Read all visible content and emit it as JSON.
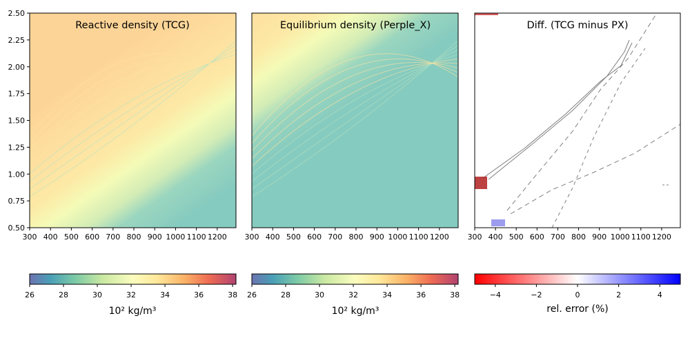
{
  "chart_data": [
    {
      "type": "heatmap",
      "title": "Reactive density (TCG)",
      "x_ticks": [
        "300",
        "400",
        "500",
        "600",
        "700",
        "800",
        "900",
        "1000",
        "1100",
        "1200"
      ],
      "y_ticks": [
        "0.50",
        "0.75",
        "1.00",
        "1.25",
        "1.50",
        "1.75",
        "2.00",
        "2.25",
        "2.50"
      ],
      "xlim": [
        300,
        1290
      ],
      "ylim": [
        0.5,
        2.5
      ],
      "colorbar": {
        "label": "10² kg/m³",
        "ticks": [
          "26",
          "28",
          "30",
          "32",
          "34",
          "36",
          "38"
        ],
        "range": [
          26,
          38.2
        ],
        "colormap": "Spectral_r"
      },
      "colors": {
        "low": "#86cbbf",
        "mid": "#f4fbb7",
        "high": "#fdd497"
      }
    },
    {
      "type": "heatmap",
      "title": "Equilibrium density (Perple_X)",
      "x_ticks": [
        "300",
        "400",
        "500",
        "600",
        "700",
        "800",
        "900",
        "1000",
        "1100",
        "1200"
      ],
      "y_ticks": [],
      "xlim": [
        300,
        1290
      ],
      "ylim": [
        0.5,
        2.5
      ],
      "colorbar": {
        "label": "10² kg/m³",
        "ticks": [
          "26",
          "28",
          "30",
          "32",
          "34",
          "36",
          "38"
        ],
        "range": [
          26,
          38.2
        ],
        "colormap": "Spectral_r"
      },
      "colors": {
        "low": "#86cbbf",
        "mid": "#f4fbb7",
        "high": "#fdd497"
      }
    },
    {
      "type": "heatmap",
      "title": "Diff. (TCG minus PX)",
      "x_ticks": [
        "300",
        "400",
        "500",
        "600",
        "700",
        "800",
        "900",
        "1000",
        "1100",
        "1200"
      ],
      "y_ticks": [],
      "xlim": [
        300,
        1290
      ],
      "ylim": [
        0.5,
        2.5
      ],
      "colorbar": {
        "label": "rel. error (%)",
        "ticks": [
          "−4",
          "−2",
          "0",
          "2",
          "4"
        ],
        "range": [
          -5,
          5
        ],
        "colormap": "bwr_r"
      },
      "colors": {
        "negative": "#ff0000",
        "zero": "#ffffff",
        "positive": "#0000ff",
        "contour": "#7f7f7f"
      }
    }
  ]
}
